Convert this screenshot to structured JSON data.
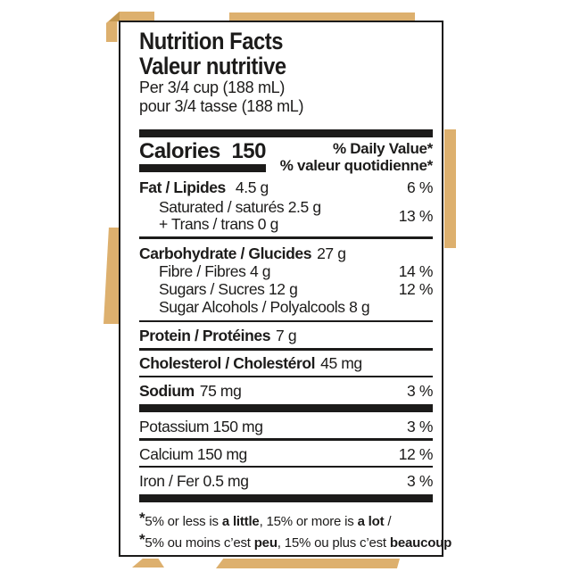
{
  "colors": {
    "tan": "#ddb06e",
    "tan_dark": "#c2964f",
    "ink": "#1c1b1a",
    "paper": "#ffffff"
  },
  "label": {
    "title_en": "Nutrition Facts",
    "title_fr": "Valeur nutritive",
    "serving_en": "Per 3/4 cup (188 mL)",
    "serving_fr": "pour 3/4 tasse (188 mL)",
    "calories_label": "Calories",
    "calories_value": "150",
    "dv_header_en": "% Daily Value*",
    "dv_header_fr": "% valeur quotidienne*",
    "rows": [
      {
        "name": "fat",
        "bold": "Fat / Lipides",
        "amount": "4.5 g",
        "dv": "6 %"
      },
      {
        "name": "saturated-trans",
        "line1": "Saturated / saturés 2.5 g",
        "line2": "+ Trans / trans 0 g",
        "dv": "13 %"
      },
      {
        "name": "carbohydrate",
        "bold": "Carbohydrate / Glucides",
        "amount": "27 g",
        "dv": ""
      },
      {
        "name": "fibre",
        "text": "Fibre / Fibres 4 g",
        "dv": "14 %"
      },
      {
        "name": "sugars",
        "text": "Sugars / Sucres 12 g",
        "dv": "12 %"
      },
      {
        "name": "sugar-alcohols",
        "text": "Sugar Alcohols / Polyalcools 8 g",
        "dv": ""
      },
      {
        "name": "protein",
        "bold": "Protein / Protéines",
        "amount": "7 g",
        "dv": ""
      },
      {
        "name": "cholesterol",
        "bold": "Cholesterol / Cholestérol",
        "amount": "45 mg",
        "dv": ""
      },
      {
        "name": "sodium",
        "bold": "Sodium",
        "amount": "75 mg",
        "dv": "3 %"
      },
      {
        "name": "potassium",
        "text": "Potassium 150 mg",
        "dv": "3 %"
      },
      {
        "name": "calcium",
        "text": "Calcium 150 mg",
        "dv": "12 %"
      },
      {
        "name": "iron",
        "text": "Iron / Fer 0.5 mg",
        "dv": "3 %"
      }
    ],
    "footnote_en": {
      "star": "*",
      "p1": "5% or less is ",
      "b1": "a little",
      "p2": ", 15% or more is ",
      "b2": "a lot",
      "p3": " /"
    },
    "footnote_fr": {
      "star": "*",
      "p1": "5% ou moins c’est ",
      "b1": "peu",
      "p2": ", 15% ou plus c’est ",
      "b2": "beaucoup",
      "p3": ""
    }
  }
}
